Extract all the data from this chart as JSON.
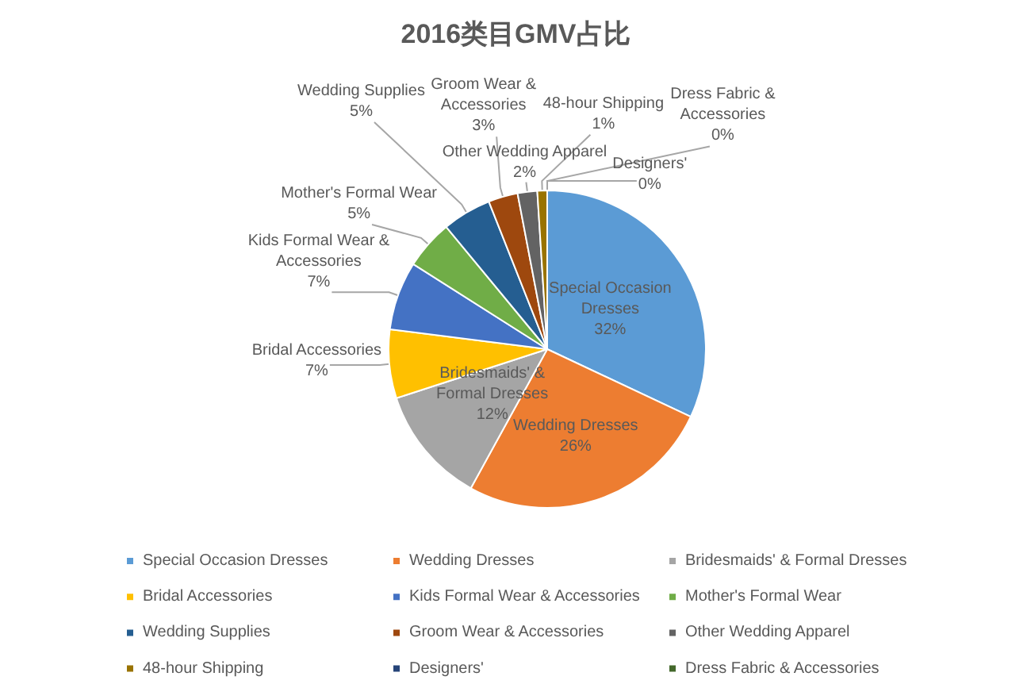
{
  "chart_data": {
    "type": "pie",
    "title": "2016类目GMV占比",
    "categories": [
      "Special Occasion Dresses",
      "Wedding Dresses",
      "Bridesmaids' & Formal Dresses",
      "Bridal Accessories",
      "Kids Formal Wear & Accessories",
      "Mother's Formal Wear",
      "Wedding Supplies",
      "Groom Wear & Accessories",
      "Other Wedding Apparel",
      "48-hour Shipping",
      "Designers'",
      "Dress Fabric & Accessories"
    ],
    "values": [
      32,
      26,
      12,
      7,
      7,
      5,
      5,
      3,
      2,
      1,
      0,
      0
    ],
    "colors": [
      "#5b9bd5",
      "#ed7d31",
      "#a5a5a5",
      "#ffc000",
      "#4472c4",
      "#70ad47",
      "#255e91",
      "#9e480e",
      "#636363",
      "#997300",
      "#264478",
      "#43682b"
    ],
    "value_labels": [
      "32%",
      "26%",
      "12%",
      "7%",
      "7%",
      "5%",
      "5%",
      "3%",
      "2%",
      "1%",
      "0%",
      "0%"
    ],
    "legend": "bottom"
  }
}
